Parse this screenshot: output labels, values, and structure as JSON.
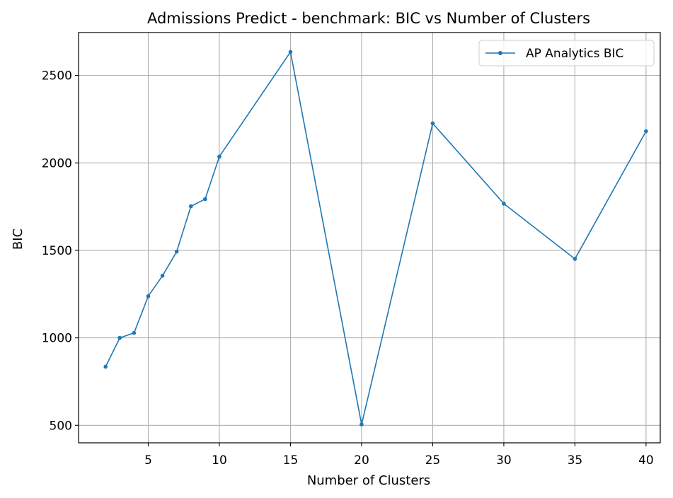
{
  "chart_data": {
    "type": "line",
    "title": "Admissions Predict - benchmark: BIC vs Number of Clusters",
    "xlabel": "Number of Clusters",
    "ylabel": "BIC",
    "x_ticks": [
      5,
      10,
      15,
      20,
      25,
      30,
      35,
      40
    ],
    "y_ticks": [
      500,
      1000,
      1500,
      2000,
      2500
    ],
    "xlim": [
      0.1,
      41.0
    ],
    "ylim": [
      400,
      2745
    ],
    "grid": true,
    "legend_position": "top-right",
    "series": [
      {
        "name": "AP Analytics BIC",
        "color": "#1f77b4",
        "marker": "circle",
        "x": [
          2,
          3,
          4,
          5,
          6,
          7,
          8,
          9,
          10,
          15,
          20,
          25,
          30,
          35,
          40
        ],
        "y": [
          835,
          1000,
          1028,
          1238,
          1355,
          1493,
          1752,
          1793,
          2036,
          2634,
          505,
          2226,
          1767,
          1451,
          2181
        ]
      }
    ]
  }
}
